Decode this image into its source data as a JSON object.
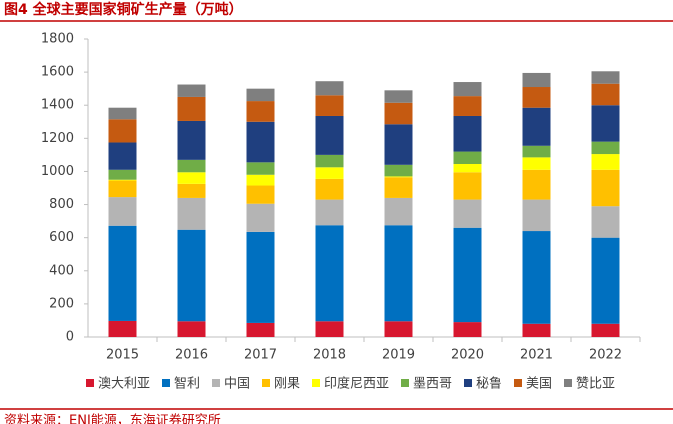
{
  "chart_data": {
    "type": "stacked_bar",
    "title": "图4  全球主要国家铜矿生产量（万吨）",
    "source": "资料来源：ENI能源，东海证券研究所",
    "categories": [
      "2015",
      "2016",
      "2017",
      "2018",
      "2019",
      "2020",
      "2021",
      "2022"
    ],
    "series": [
      {
        "name": "澳大利亚",
        "color": "#d7172f",
        "values": [
          97,
          95,
          85,
          95,
          95,
          90,
          80,
          80
        ]
      },
      {
        "name": "智利",
        "color": "#0070c0",
        "values": [
          575,
          553,
          550,
          580,
          580,
          570,
          560,
          520
        ]
      },
      {
        "name": "中国",
        "color": "#b4b4b4",
        "values": [
          173,
          192,
          170,
          155,
          165,
          170,
          190,
          190
        ]
      },
      {
        "name": "刚果",
        "color": "#ffc000",
        "values": [
          100,
          85,
          110,
          125,
          125,
          165,
          180,
          220
        ]
      },
      {
        "name": "印度尼西亚",
        "color": "#ffff00",
        "values": [
          5,
          70,
          65,
          70,
          5,
          50,
          75,
          95
        ]
      },
      {
        "name": "墨西哥",
        "color": "#70ad47",
        "values": [
          60,
          75,
          75,
          75,
          70,
          75,
          70,
          75
        ]
      },
      {
        "name": "秘鲁",
        "color": "#1f3f7f",
        "values": [
          165,
          235,
          245,
          235,
          245,
          215,
          230,
          220
        ]
      },
      {
        "name": "美国",
        "color": "#c55a11",
        "values": [
          140,
          145,
          125,
          125,
          130,
          120,
          125,
          130
        ]
      },
      {
        "name": "赞比亚",
        "color": "#7f7f7f",
        "values": [
          70,
          75,
          75,
          85,
          75,
          85,
          85,
          75
        ]
      }
    ],
    "ylim": [
      0,
      1800
    ],
    "yticks": [
      0,
      200,
      400,
      600,
      800,
      1000,
      1200,
      1400,
      1600,
      1800
    ],
    "grid": false
  }
}
